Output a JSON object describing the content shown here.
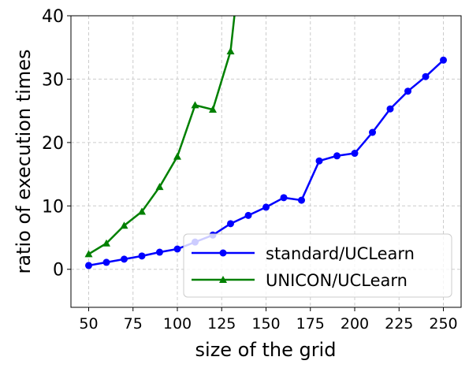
{
  "chart_data": {
    "type": "line",
    "title": "",
    "xlabel": "size of the grid",
    "ylabel": "ratio of execution times",
    "xlim": [
      40,
      260
    ],
    "ylim": [
      -6,
      40
    ],
    "xticks": [
      50,
      75,
      100,
      125,
      150,
      175,
      200,
      225,
      250
    ],
    "yticks": [
      0,
      10,
      20,
      30,
      40
    ],
    "grid": true,
    "legend_position": "lower-right",
    "series": [
      {
        "name": "standard/UCLearn",
        "color": "#0000ff",
        "marker": "circle",
        "x": [
          50,
          60,
          70,
          80,
          90,
          100,
          110,
          120,
          130,
          140,
          150,
          160,
          170,
          180,
          190,
          200,
          210,
          220,
          230,
          240,
          250
        ],
        "y": [
          0.6,
          1.1,
          1.6,
          2.1,
          2.7,
          3.2,
          4.3,
          5.4,
          7.2,
          8.5,
          9.8,
          11.3,
          10.9,
          17.1,
          17.9,
          18.3,
          21.6,
          25.3,
          28.1,
          30.4,
          33.0
        ]
      },
      {
        "name": "UNICON/UCLearn",
        "color": "#008000",
        "marker": "triangle",
        "x": [
          50,
          60,
          70,
          80,
          90,
          100,
          110,
          120,
          130,
          140
        ],
        "y": [
          2.4,
          4.1,
          6.9,
          9.1,
          13.0,
          17.8,
          25.9,
          25.2,
          34.4,
          60.0
        ]
      }
    ]
  }
}
